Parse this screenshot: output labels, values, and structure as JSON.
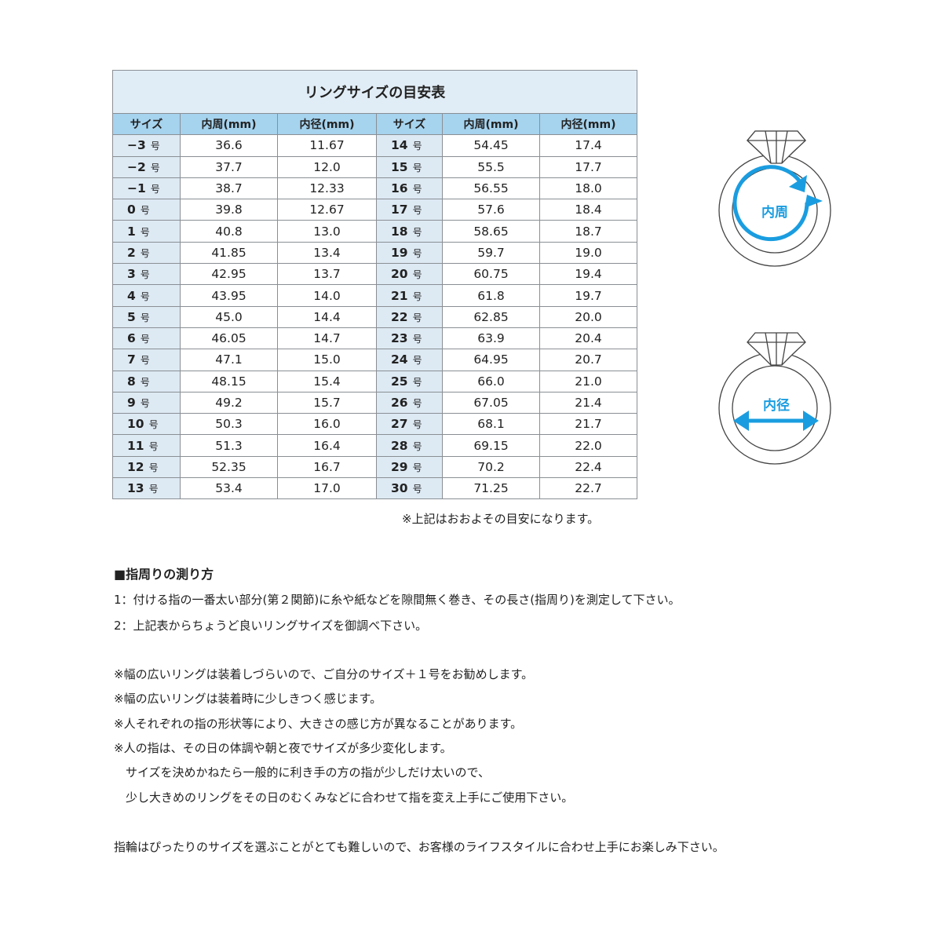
{
  "table": {
    "title": "リングサイズの目安表",
    "headers": [
      "サイズ",
      "内周(mm)",
      "内径(mm)",
      "サイズ",
      "内周(mm)",
      "内径(mm)"
    ],
    "unit": "号",
    "rows": [
      [
        "−3",
        "36.6",
        "11.67",
        "14",
        "54.45",
        "17.4"
      ],
      [
        "−2",
        "37.7",
        "12.0",
        "15",
        "55.5",
        "17.7"
      ],
      [
        "−1",
        "38.7",
        "12.33",
        "16",
        "56.55",
        "18.0"
      ],
      [
        "0",
        "39.8",
        "12.67",
        "17",
        "57.6",
        "18.4"
      ],
      [
        "1",
        "40.8",
        "13.0",
        "18",
        "58.65",
        "18.7"
      ],
      [
        "2",
        "41.85",
        "13.4",
        "19",
        "59.7",
        "19.0"
      ],
      [
        "3",
        "42.95",
        "13.7",
        "20",
        "60.75",
        "19.4"
      ],
      [
        "4",
        "43.95",
        "14.0",
        "21",
        "61.8",
        "19.7"
      ],
      [
        "5",
        "45.0",
        "14.4",
        "22",
        "62.85",
        "20.0"
      ],
      [
        "6",
        "46.05",
        "14.7",
        "23",
        "63.9",
        "20.4"
      ],
      [
        "7",
        "47.1",
        "15.0",
        "24",
        "64.95",
        "20.7"
      ],
      [
        "8",
        "48.15",
        "15.4",
        "25",
        "66.0",
        "21.0"
      ],
      [
        "9",
        "49.2",
        "15.7",
        "26",
        "67.05",
        "21.4"
      ],
      [
        "10",
        "50.3",
        "16.0",
        "27",
        "68.1",
        "21.7"
      ],
      [
        "11",
        "51.3",
        "16.4",
        "28",
        "69.15",
        "22.0"
      ],
      [
        "12",
        "52.35",
        "16.7",
        "29",
        "70.2",
        "22.4"
      ],
      [
        "13",
        "53.4",
        "17.0",
        "30",
        "71.25",
        "22.7"
      ]
    ],
    "footnote": "※上記はおおよその目安になります。"
  },
  "diagrams": {
    "circumference_label": "内周",
    "diameter_label": "内径",
    "accent": "#1a9de0"
  },
  "howto": {
    "heading": "■指周りの測り方",
    "steps": [
      "1：付ける指の一番太い部分(第２関節)に糸や紙などを隙間無く巻き、その長さ(指周り)を測定して下さい。",
      "2：上記表からちょうど良いリングサイズを御調べ下さい。"
    ]
  },
  "notes": [
    "※幅の広いリングは装着しづらいので、ご自分のサイズ＋１号をお勧めします。",
    "※幅の広いリングは装着時に少しきつく感じます。",
    "※人それぞれの指の形状等により、大きさの感じ方が異なることがあります。",
    "※人の指は、その日の体調や朝と夜でサイズが多少変化します。",
    "　サイズを決めかねたら一般的に利き手の方の指が少しだけ太いので、",
    "　少し大きめのリングをその日のむくみなどに合わせて指を変え上手にご使用下さい。"
  ],
  "closing": "指輪はぴったりのサイズを選ぶことがとても難しいので、お客様のライフスタイルに合わせ上手にお楽しみ下さい。"
}
